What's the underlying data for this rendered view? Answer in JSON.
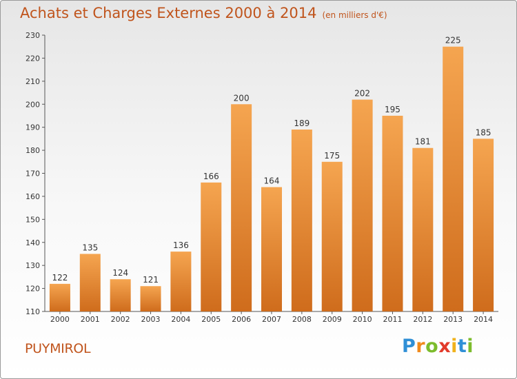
{
  "title": "Achats et Charges Externes 2000 à 2014",
  "subtitle": "(en milliers d'€)",
  "commune": "PUYMIROL",
  "logo": "Proxiti",
  "colors": {
    "accent": "#c0541c",
    "bar_top": "#f5a550",
    "bar_bottom": "#cf6c1c"
  },
  "chart_data": {
    "type": "bar",
    "title": "Achats et Charges Externes 2000 à 2014",
    "subtitle": "(en milliers d'€)",
    "categories": [
      "2000",
      "2001",
      "2002",
      "2003",
      "2004",
      "2005",
      "2006",
      "2007",
      "2008",
      "2009",
      "2010",
      "2011",
      "2012",
      "2013",
      "2014"
    ],
    "values": [
      122,
      135,
      124,
      121,
      136,
      166,
      200,
      164,
      189,
      175,
      202,
      195,
      181,
      225,
      185
    ],
    "ylim": [
      110,
      230
    ],
    "yticks": [
      110,
      120,
      130,
      140,
      150,
      160,
      170,
      180,
      190,
      200,
      210,
      220,
      230
    ],
    "grid": false,
    "legend": "none",
    "data_labels": true
  }
}
